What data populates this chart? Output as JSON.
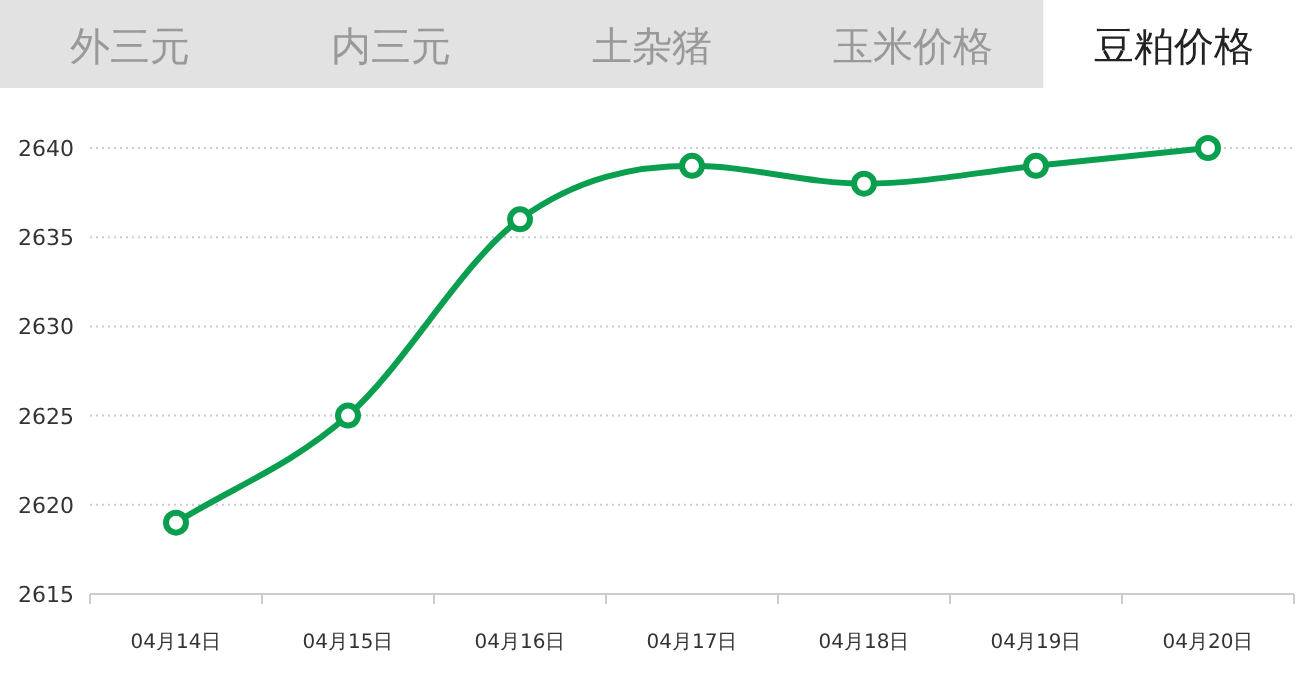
{
  "chart_data": {
    "type": "line",
    "title": "豆粕价格",
    "annotations": [
      "外三元",
      "内三元",
      "土杂猪",
      "玉米价格"
    ],
    "categories": [
      "04月14日",
      "04月15日",
      "04月16日",
      "04月17日",
      "04月18日",
      "04月19日",
      "04月20日"
    ],
    "series": [
      {
        "color": "#0a9e4f",
        "values": [
          2619,
          2625,
          2636,
          2639,
          2638,
          2639,
          2640
        ]
      }
    ],
    "ylim": [
      2615,
      2640
    ],
    "yticks": [
      2615,
      2620,
      2625,
      2630,
      2635,
      2640
    ],
    "grid": "y",
    "marker": "circle",
    "line_style": "solid"
  }
}
